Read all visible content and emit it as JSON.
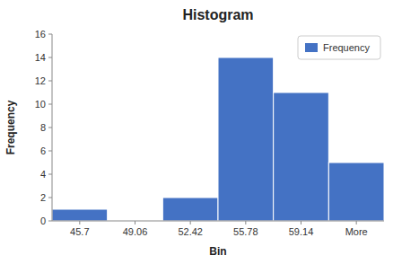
{
  "chart_data": {
    "type": "bar",
    "title": "Histogram",
    "x_label": "Bin",
    "y_label": "Frequency",
    "categories": [
      "45.7",
      "49.06",
      "52.42",
      "55.78",
      "59.14",
      "More"
    ],
    "series": [
      {
        "name": "Frequency",
        "color": "#4472C4",
        "values": [
          1,
          0,
          2,
          14,
          11,
          5
        ]
      }
    ],
    "ylim": [
      0,
      16
    ],
    "yticks": [
      0,
      2,
      4,
      6,
      8,
      10,
      12,
      14,
      16
    ],
    "grid": false,
    "legend": "upper right"
  }
}
